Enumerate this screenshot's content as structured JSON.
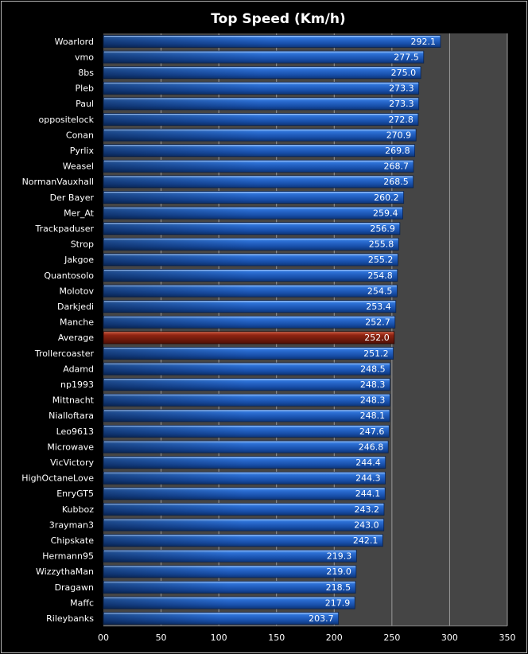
{
  "chart_data": {
    "type": "bar",
    "orientation": "horizontal",
    "title": "Top Speed (Km/h)",
    "xlim": [
      0,
      350
    ],
    "xticks": [
      0,
      50,
      100,
      150,
      200,
      250,
      300,
      350
    ],
    "tick_labels": [
      "00",
      "50",
      "100",
      "150",
      "200",
      "250",
      "300",
      "350"
    ],
    "grid": true,
    "legend": "none",
    "categories": [
      "Woarlord",
      "vmo",
      "8bs",
      "Pleb",
      "Paul",
      "oppositelock",
      "Conan",
      "Pyrlix",
      "Weasel",
      "NormanVauxhall",
      "Der Bayer",
      "Mer_At",
      "Trackpaduser",
      "Strop",
      "Jakgoe",
      "Quantosolo",
      "Molotov",
      "Darkjedi",
      "Manche",
      "Average",
      "Trollercoaster",
      "Adamd",
      "np1993",
      "Mittnacht",
      "Nialloftara",
      "Leo9613",
      "Microwave",
      "VicVictory",
      "HighOctaneLove",
      "EnryGT5",
      "Kubboz",
      "3rayman3",
      "Chipskate",
      "Hermann95",
      "WizzythaMan",
      "Dragawn",
      "Maffc",
      "Rileybanks"
    ],
    "values": [
      292.1,
      277.5,
      275.0,
      273.3,
      273.3,
      272.8,
      270.9,
      269.8,
      268.7,
      268.5,
      260.2,
      259.4,
      256.9,
      255.8,
      255.2,
      254.8,
      254.5,
      253.4,
      252.7,
      252.0,
      251.2,
      248.5,
      248.3,
      248.3,
      248.1,
      247.6,
      246.8,
      244.4,
      244.3,
      244.1,
      243.2,
      243.0,
      242.1,
      219.3,
      219.0,
      218.5,
      217.9,
      203.7
    ],
    "value_labels": [
      "292.1",
      "277.5",
      "275.0",
      "273.3",
      "273.3",
      "272.8",
      "270.9",
      "269.8",
      "268.7",
      "268.5",
      "260.2",
      "259.4",
      "256.9",
      "255.8",
      "255.2",
      "254.8",
      "254.5",
      "253.4",
      "252.7",
      "252.0",
      "251.2",
      "248.5",
      "248.3",
      "248.3",
      "248.1",
      "247.6",
      "246.8",
      "244.4",
      "244.3",
      "244.1",
      "243.2",
      "243.0",
      "242.1",
      "219.3",
      "219.0",
      "218.5",
      "217.9",
      "203.7"
    ],
    "highlight_category": "Average",
    "colors": {
      "background": "#000000",
      "plot_area": "#454545",
      "bar": "#1f5fc0",
      "bar_highlight": "#8b1d0c",
      "gridline": "#9a9a9a",
      "text": "#ffffff",
      "border": "#b4b4b4"
    }
  }
}
